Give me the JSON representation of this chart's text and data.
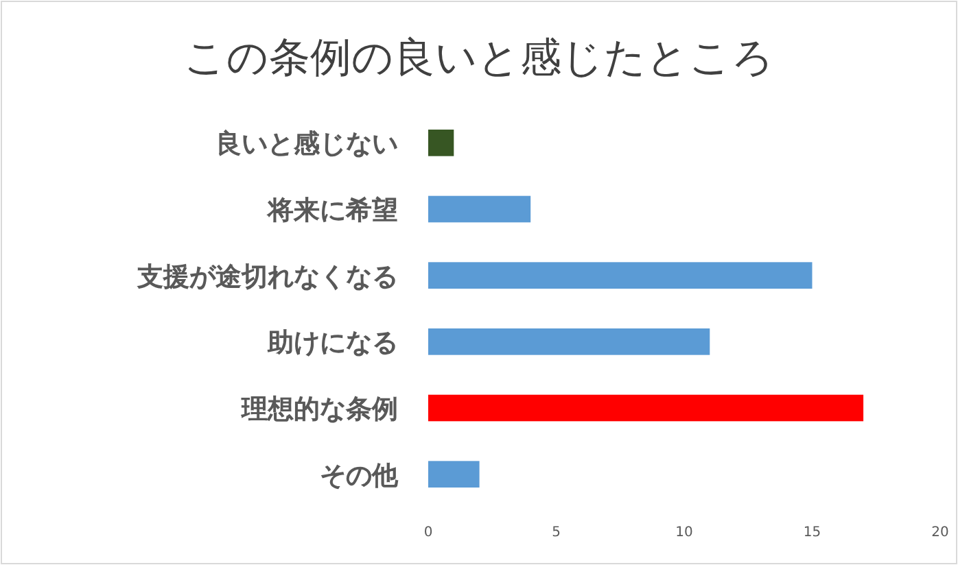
{
  "chart_data": {
    "type": "bar",
    "orientation": "horizontal",
    "title": "この条例の良いと感じたところ",
    "categories": [
      "良いと感じない",
      "将来に希望",
      "支援が途切れなくなる",
      "助けになる",
      "理想的な条例",
      "その他"
    ],
    "values": [
      1,
      4,
      15,
      11,
      17,
      2
    ],
    "colors": [
      "#375623",
      "#5b9bd5",
      "#5b9bd5",
      "#5b9bd5",
      "#ff0000",
      "#5b9bd5"
    ],
    "xlim": [
      0,
      20
    ],
    "xticks": [
      0,
      5,
      10,
      15,
      20
    ],
    "grid": false
  }
}
